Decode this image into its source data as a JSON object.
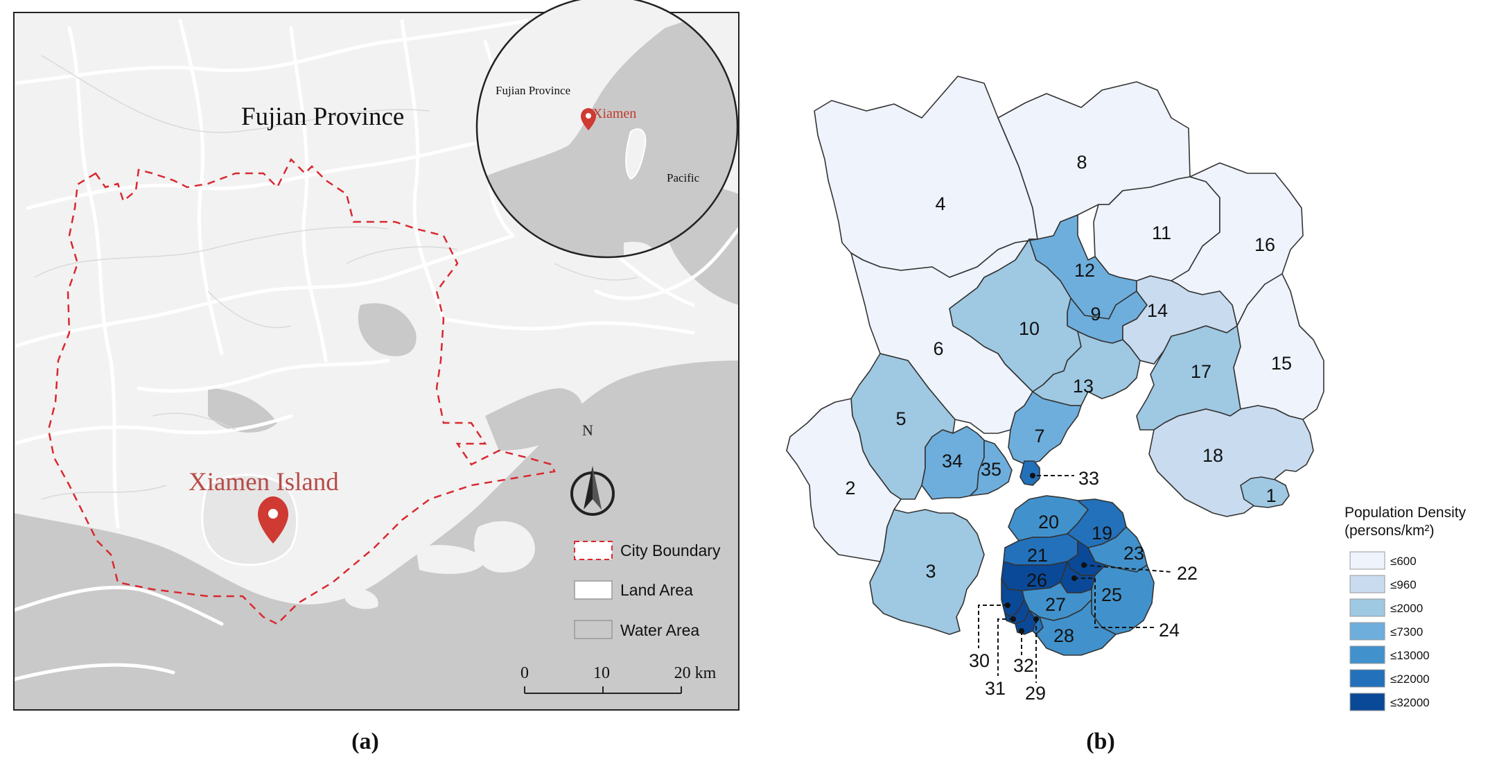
{
  "panel_a": {
    "caption": "(a)",
    "region_label": "Fujian Province",
    "island_label": "Xiamen Island",
    "inset": {
      "province_label": "Fujian Province",
      "city_label": "Xiamen",
      "ocean_label": "Pacific"
    },
    "north_label": "N",
    "legend": [
      {
        "label": "City Boundary",
        "symbol": "dashed-box"
      },
      {
        "label": "Land Area",
        "symbol": "white-box"
      },
      {
        "label": "Water Area",
        "symbol": "grey-box"
      }
    ],
    "scale_bar": {
      "ticks": [
        "0",
        "10",
        "20 km"
      ]
    },
    "colors": {
      "water": "#c9c9c9",
      "land": "#f2f2f2",
      "road": "#ffffff",
      "boundary": "#d9282f",
      "marker": "#cf3a33"
    }
  },
  "panel_b": {
    "caption": "(b)",
    "legend": {
      "title_line1": "Population Density",
      "title_line2": "(persons/km²)",
      "classes": [
        {
          "label": "≤600",
          "color": "#eef3fc"
        },
        {
          "label": "≤960",
          "color": "#c9dbef"
        },
        {
          "label": "≤2000",
          "color": "#9fc8e2"
        },
        {
          "label": "≤7300",
          "color": "#6eaedc"
        },
        {
          "label": "≤13000",
          "color": "#4192cc"
        },
        {
          "label": "≤22000",
          "color": "#2371ba"
        },
        {
          "label": "≤32000",
          "color": "#0a4998"
        }
      ]
    },
    "zones": [
      {
        "id": "1",
        "class": "≤2000"
      },
      {
        "id": "2",
        "class": "≤600"
      },
      {
        "id": "3",
        "class": "≤2000"
      },
      {
        "id": "4",
        "class": "≤600"
      },
      {
        "id": "5",
        "class": "≤2000"
      },
      {
        "id": "6",
        "class": "≤600"
      },
      {
        "id": "7",
        "class": "≤7300"
      },
      {
        "id": "8",
        "class": "≤600"
      },
      {
        "id": "9",
        "class": "≤7300"
      },
      {
        "id": "10",
        "class": "≤2000"
      },
      {
        "id": "11",
        "class": "≤600"
      },
      {
        "id": "12",
        "class": "≤7300"
      },
      {
        "id": "13",
        "class": "≤2000"
      },
      {
        "id": "14",
        "class": "≤960"
      },
      {
        "id": "15",
        "class": "≤600"
      },
      {
        "id": "16",
        "class": "≤600"
      },
      {
        "id": "17",
        "class": "≤2000"
      },
      {
        "id": "18",
        "class": "≤960"
      },
      {
        "id": "19",
        "class": "≤22000"
      },
      {
        "id": "20",
        "class": "≤13000"
      },
      {
        "id": "21",
        "class": "≤22000"
      },
      {
        "id": "22",
        "class": "≤32000"
      },
      {
        "id": "23",
        "class": "≤13000"
      },
      {
        "id": "24",
        "class": "≤32000"
      },
      {
        "id": "25",
        "class": "≤13000"
      },
      {
        "id": "26",
        "class": "≤32000"
      },
      {
        "id": "27",
        "class": "≤13000"
      },
      {
        "id": "28",
        "class": "≤13000"
      },
      {
        "id": "29",
        "class": "≤22000"
      },
      {
        "id": "30",
        "class": "≤32000"
      },
      {
        "id": "31",
        "class": "≤32000"
      },
      {
        "id": "32",
        "class": "≤32000"
      },
      {
        "id": "33",
        "class": "≤22000"
      },
      {
        "id": "34",
        "class": "≤7300"
      },
      {
        "id": "35",
        "class": "≤7300"
      }
    ]
  }
}
